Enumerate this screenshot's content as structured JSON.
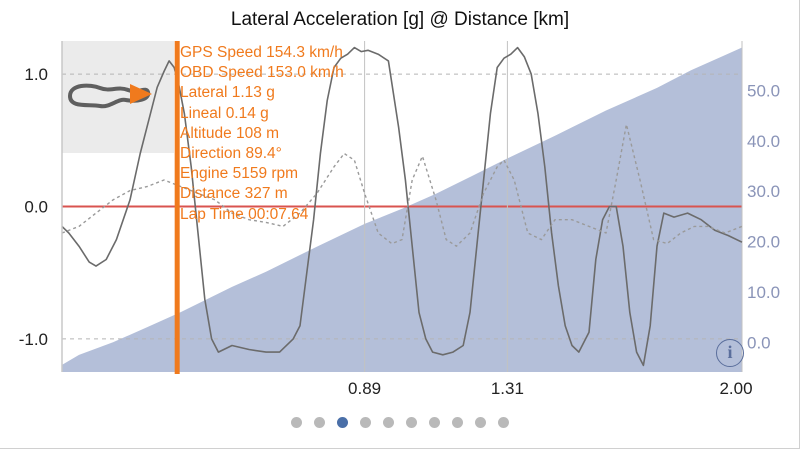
{
  "title": "Lateral Acceleration [g] @ Distance [km]",
  "info_icon": "info-icon",
  "info_glyph": "i",
  "page_indicator": {
    "count": 10,
    "active_index": 2
  },
  "colors": {
    "area_fill": "#b4bfd9",
    "accel_line": "#6b6b6b",
    "lineal_line": "#9a9a9a",
    "cursor": "#f07a1d",
    "zero_line": "#d9534f",
    "overlay_text": "#f07a1d"
  },
  "readout": [
    {
      "label": "GPS Speed",
      "value": "154.3 km/h"
    },
    {
      "label": "OBD Speed",
      "value": "153.0 km/h"
    },
    {
      "label": "Lateral",
      "value": "1.13 g"
    },
    {
      "label": "Lineal",
      "value": "0.14 g"
    },
    {
      "label": "Altitude",
      "value": "108 m"
    },
    {
      "label": "Direction",
      "value": "89.4°"
    },
    {
      "label": "Engine",
      "value": "5159 rpm"
    },
    {
      "label": "Distance",
      "value": "327 m"
    },
    {
      "label": "Lap Time",
      "value": "00:07.64"
    }
  ],
  "chart_data": {
    "type": "line",
    "title": "Lateral Acceleration [g] @ Distance [km]",
    "x_ticks": [
      "0.89",
      "1.31",
      "2.00"
    ],
    "x_tick_values": [
      0.89,
      1.31,
      2.0
    ],
    "xlim": [
      0,
      2.0
    ],
    "y_ticks": [
      "1.0",
      "0.0",
      "-1.0"
    ],
    "y_tick_values": [
      1.0,
      0.0,
      -1.0
    ],
    "ylim": [
      -1.25,
      1.25
    ],
    "y2_ticks": [
      "50.0",
      "40.0",
      "30.0",
      "20.0",
      "10.0",
      "0.0"
    ],
    "y2_tick_values": [
      50,
      40,
      30,
      20,
      10,
      0
    ],
    "y2lim": [
      -5.9,
      59.8
    ],
    "cursor_x": 0.327,
    "series": [
      {
        "kind": "area",
        "axis": "right",
        "x": [
          0,
          0.05,
          0.15,
          0.25,
          0.35,
          0.5,
          0.6,
          0.75,
          0.89,
          1.0,
          1.1,
          1.2,
          1.31,
          1.45,
          1.6,
          1.75,
          1.85,
          1.95,
          2.0
        ],
        "values": [
          -4.5,
          -2.5,
          0,
          3,
          6,
          11,
          14,
          19,
          23.5,
          26.5,
          29.5,
          32.8,
          36.5,
          41,
          46,
          50.5,
          54,
          57,
          58.5
        ]
      },
      {
        "kind": "line",
        "axis": "left",
        "x": [
          0,
          0.02,
          0.05,
          0.08,
          0.1,
          0.13,
          0.16,
          0.2,
          0.23,
          0.26,
          0.28,
          0.3,
          0.315,
          0.33,
          0.345,
          0.36,
          0.38,
          0.4,
          0.42,
          0.44,
          0.46,
          0.5,
          0.55,
          0.6,
          0.64,
          0.68,
          0.7,
          0.72,
          0.74,
          0.76,
          0.78,
          0.8,
          0.82,
          0.84,
          0.86,
          0.88,
          0.9,
          0.93,
          0.96,
          0.99,
          1.01,
          1.03,
          1.05,
          1.07,
          1.09,
          1.12,
          1.15,
          1.18,
          1.2,
          1.22,
          1.24,
          1.26,
          1.28,
          1.3,
          1.32,
          1.34,
          1.36,
          1.38,
          1.4,
          1.42,
          1.44,
          1.46,
          1.48,
          1.5,
          1.52,
          1.55,
          1.57,
          1.59,
          1.61,
          1.63,
          1.65,
          1.67,
          1.69,
          1.71,
          1.73,
          1.75,
          1.77,
          1.8,
          1.84,
          1.88,
          1.92,
          1.96,
          2.0
        ],
        "values": [
          -0.15,
          -0.2,
          -0.3,
          -0.42,
          -0.45,
          -0.4,
          -0.25,
          0.05,
          0.4,
          0.7,
          0.9,
          1.02,
          1.1,
          1.05,
          0.9,
          0.7,
          0.3,
          -0.2,
          -0.7,
          -1.0,
          -1.1,
          -1.05,
          -1.08,
          -1.1,
          -1.1,
          -1.0,
          -0.9,
          -0.5,
          -0.1,
          0.4,
          0.8,
          1.05,
          1.12,
          1.15,
          1.2,
          1.17,
          1.18,
          1.15,
          1.1,
          0.6,
          0.2,
          -0.3,
          -0.8,
          -1.0,
          -1.1,
          -1.12,
          -1.1,
          -1.05,
          -0.8,
          -0.3,
          0.2,
          0.7,
          1.05,
          1.12,
          1.15,
          1.2,
          1.13,
          1.0,
          0.7,
          0.3,
          -0.2,
          -0.6,
          -0.9,
          -1.05,
          -1.1,
          -0.95,
          -0.4,
          -0.1,
          0.0,
          0.0,
          -0.3,
          -0.8,
          -1.1,
          -1.2,
          -0.9,
          -0.3,
          -0.05,
          -0.08,
          -0.05,
          -0.1,
          -0.18,
          -0.22,
          -0.27
        ]
      },
      {
        "kind": "line",
        "axis": "left",
        "dashed": true,
        "x": [
          0,
          0.05,
          0.1,
          0.15,
          0.2,
          0.25,
          0.3,
          0.35,
          0.4,
          0.45,
          0.5,
          0.55,
          0.6,
          0.65,
          0.7,
          0.75,
          0.8,
          0.83,
          0.86,
          0.89,
          0.93,
          0.97,
          1.0,
          1.03,
          1.06,
          1.1,
          1.13,
          1.16,
          1.2,
          1.24,
          1.28,
          1.3,
          1.33,
          1.37,
          1.41,
          1.45,
          1.5,
          1.55,
          1.6,
          1.63,
          1.66,
          1.7,
          1.74,
          1.78,
          1.82,
          1.86,
          1.9,
          1.95,
          2.0
        ],
        "values": [
          -0.2,
          -0.15,
          -0.05,
          0.05,
          0.12,
          0.15,
          0.2,
          0.15,
          0.1,
          0.05,
          -0.05,
          -0.1,
          -0.12,
          -0.15,
          -0.05,
          0.1,
          0.3,
          0.4,
          0.35,
          0.1,
          -0.2,
          -0.28,
          -0.25,
          0.2,
          0.38,
          0.05,
          -0.25,
          -0.3,
          -0.2,
          0.1,
          0.3,
          0.35,
          0.2,
          -0.2,
          -0.25,
          -0.1,
          -0.1,
          -0.15,
          -0.2,
          0.2,
          0.62,
          0.2,
          -0.25,
          -0.28,
          -0.2,
          -0.15,
          -0.15,
          -0.2,
          -0.15
        ]
      }
    ]
  }
}
